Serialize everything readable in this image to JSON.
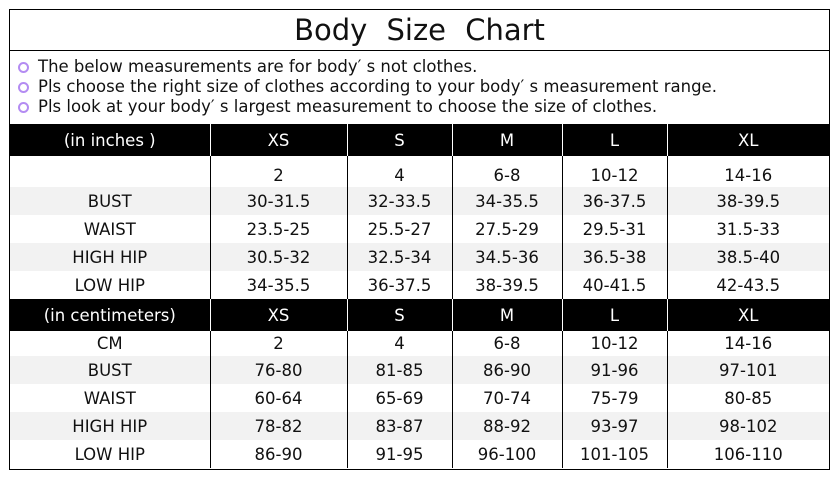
{
  "title": "Body  Size  Chart",
  "notes": [
    "The below measurements are for  body′ s not clothes.",
    "Pls choose the right size of clothes according to your body′ s  measurement range.",
    "Pls look  at your body′ s  largest measurement to choose the size of clothes."
  ],
  "accent_color": "#b48cf2",
  "inches": {
    "header": [
      "(in  inches )",
      "XS",
      "S",
      "M",
      "L",
      "XL"
    ],
    "rows": [
      [
        "",
        "2",
        "4",
        "6-8",
        "10-12",
        "14-16"
      ],
      [
        "BUST",
        "30-31.5",
        "32-33.5",
        "34-35.5",
        "36-37.5",
        "38-39.5"
      ],
      [
        "WAIST",
        "23.5-25",
        "25.5-27",
        "27.5-29",
        "29.5-31",
        "31.5-33"
      ],
      [
        "HIGH HIP",
        "30.5-32",
        "32.5-34",
        "34.5-36",
        "36.5-38",
        "38.5-40"
      ],
      [
        "LOW HIP",
        "34-35.5",
        "36-37.5",
        "38-39.5",
        "40-41.5",
        "42-43.5"
      ]
    ]
  },
  "centimeters": {
    "header": [
      "(in centimeters)",
      "XS",
      "S",
      "M",
      "L",
      "XL"
    ],
    "rows": [
      [
        "CM",
        "2",
        "4",
        "6-8",
        "10-12",
        "14-16"
      ],
      [
        "BUST",
        "76-80",
        "81-85",
        "86-90",
        "91-96",
        "97-101"
      ],
      [
        "WAIST",
        "60-64",
        "65-69",
        "70-74",
        "75-79",
        "80-85"
      ],
      [
        "HIGH HIP",
        "78-82",
        "83-87",
        "88-92",
        "93-97",
        "98-102"
      ],
      [
        "LOW HIP",
        "86-90",
        "91-95",
        "96-100",
        "101-105",
        "106-110"
      ]
    ]
  }
}
